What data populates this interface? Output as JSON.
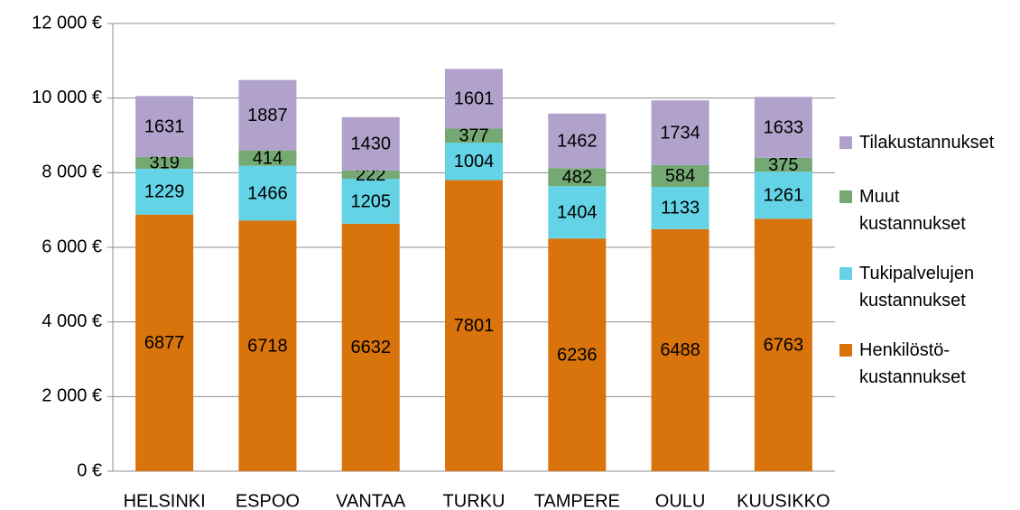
{
  "chart_data": {
    "type": "stacked_bar",
    "categories": [
      "HELSINKI",
      "ESPOO",
      "VANTAA",
      "TURKU",
      "TAMPERE",
      "OULU",
      "KUUSIKKO"
    ],
    "series": [
      {
        "name": "Henkilöstö-\nkustannukset",
        "color": "#d9730c",
        "values": [
          6877,
          6718,
          6632,
          7801,
          6236,
          6488,
          6763
        ]
      },
      {
        "name": "Tukipalvelujen\nkustannukset",
        "color": "#63d3e5",
        "values": [
          1229,
          1466,
          1205,
          1004,
          1404,
          1133,
          1261
        ]
      },
      {
        "name": "Muut\nkustannukset",
        "color": "#74a973",
        "values": [
          319,
          414,
          222,
          377,
          482,
          584,
          375
        ]
      },
      {
        "name": "Tilakustannukset",
        "color": "#b1a2cb",
        "values": [
          1631,
          1887,
          1430,
          1601,
          1462,
          1734,
          1633
        ]
      }
    ],
    "ylim": [
      0,
      12000
    ],
    "yticks": [
      {
        "value": 0,
        "label": "0 €"
      },
      {
        "value": 2000,
        "label": "2 000 €"
      },
      {
        "value": 4000,
        "label": "4 000 €"
      },
      {
        "value": 6000,
        "label": "6 000 €"
      },
      {
        "value": 8000,
        "label": "8 000 €"
      },
      {
        "value": 10000,
        "label": "10 000 €"
      },
      {
        "value": 12000,
        "label": "12 000 €"
      }
    ],
    "grid": true,
    "legend": "right"
  }
}
